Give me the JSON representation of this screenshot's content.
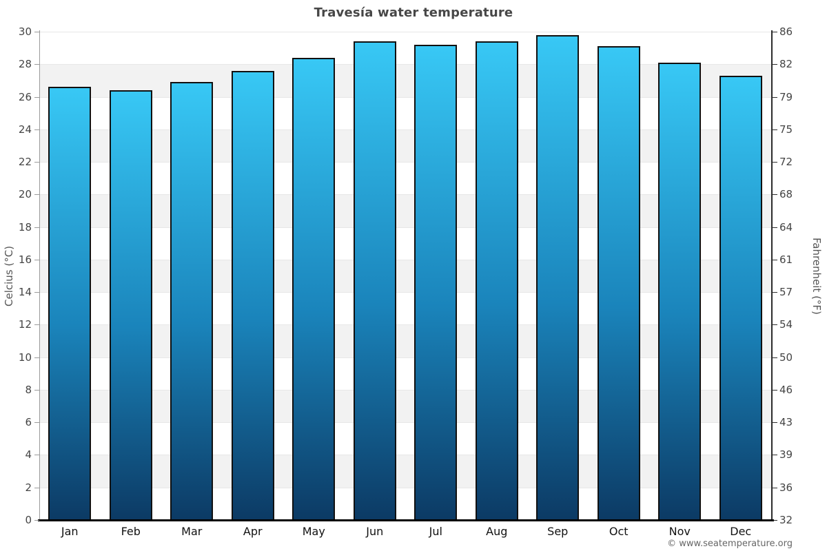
{
  "chart_data": {
    "type": "bar",
    "title": "Travesía water temperature",
    "ylabel_left": "Celcius (°C)",
    "ylabel_right": "Fahrenheit (°F)",
    "categories": [
      "Jan",
      "Feb",
      "Mar",
      "Apr",
      "May",
      "Jun",
      "Jul",
      "Aug",
      "Sep",
      "Oct",
      "Nov",
      "Dec"
    ],
    "values": [
      26.6,
      26.4,
      26.9,
      27.6,
      28.4,
      29.4,
      29.2,
      29.4,
      29.8,
      29.1,
      28.1,
      27.3
    ],
    "ylim_celsius": [
      0,
      30
    ],
    "celsius_ticks": [
      "0",
      "2",
      "4",
      "6",
      "8",
      "10",
      "12",
      "14",
      "16",
      "18",
      "20",
      "22",
      "24",
      "26",
      "28",
      "30"
    ],
    "fahrenheit_ticks": [
      "32",
      "36",
      "39",
      "43",
      "46",
      "50",
      "54",
      "57",
      "61",
      "64",
      "68",
      "72",
      "75",
      "79",
      "82",
      "86"
    ],
    "grid": "alternating horizontal bands every 2°C, white and light gray",
    "legend": "none",
    "colors": {
      "bar_gradient_top": "#38c8f5",
      "bar_gradient_bottom": "#0c3a64",
      "bar_border": "#101010",
      "band_gray": "#f2f2f2",
      "band_white": "#ffffff",
      "gridline": "#e7e7e7",
      "left_axis": "#9a9a9a",
      "right_axis": "#2b2b2b",
      "bottom_axis": "#000000",
      "title_text": "#474747",
      "tick_text": "#444444",
      "footer_text": "#666666"
    }
  },
  "footer": {
    "copyright": "© www.seatemperature.org"
  }
}
